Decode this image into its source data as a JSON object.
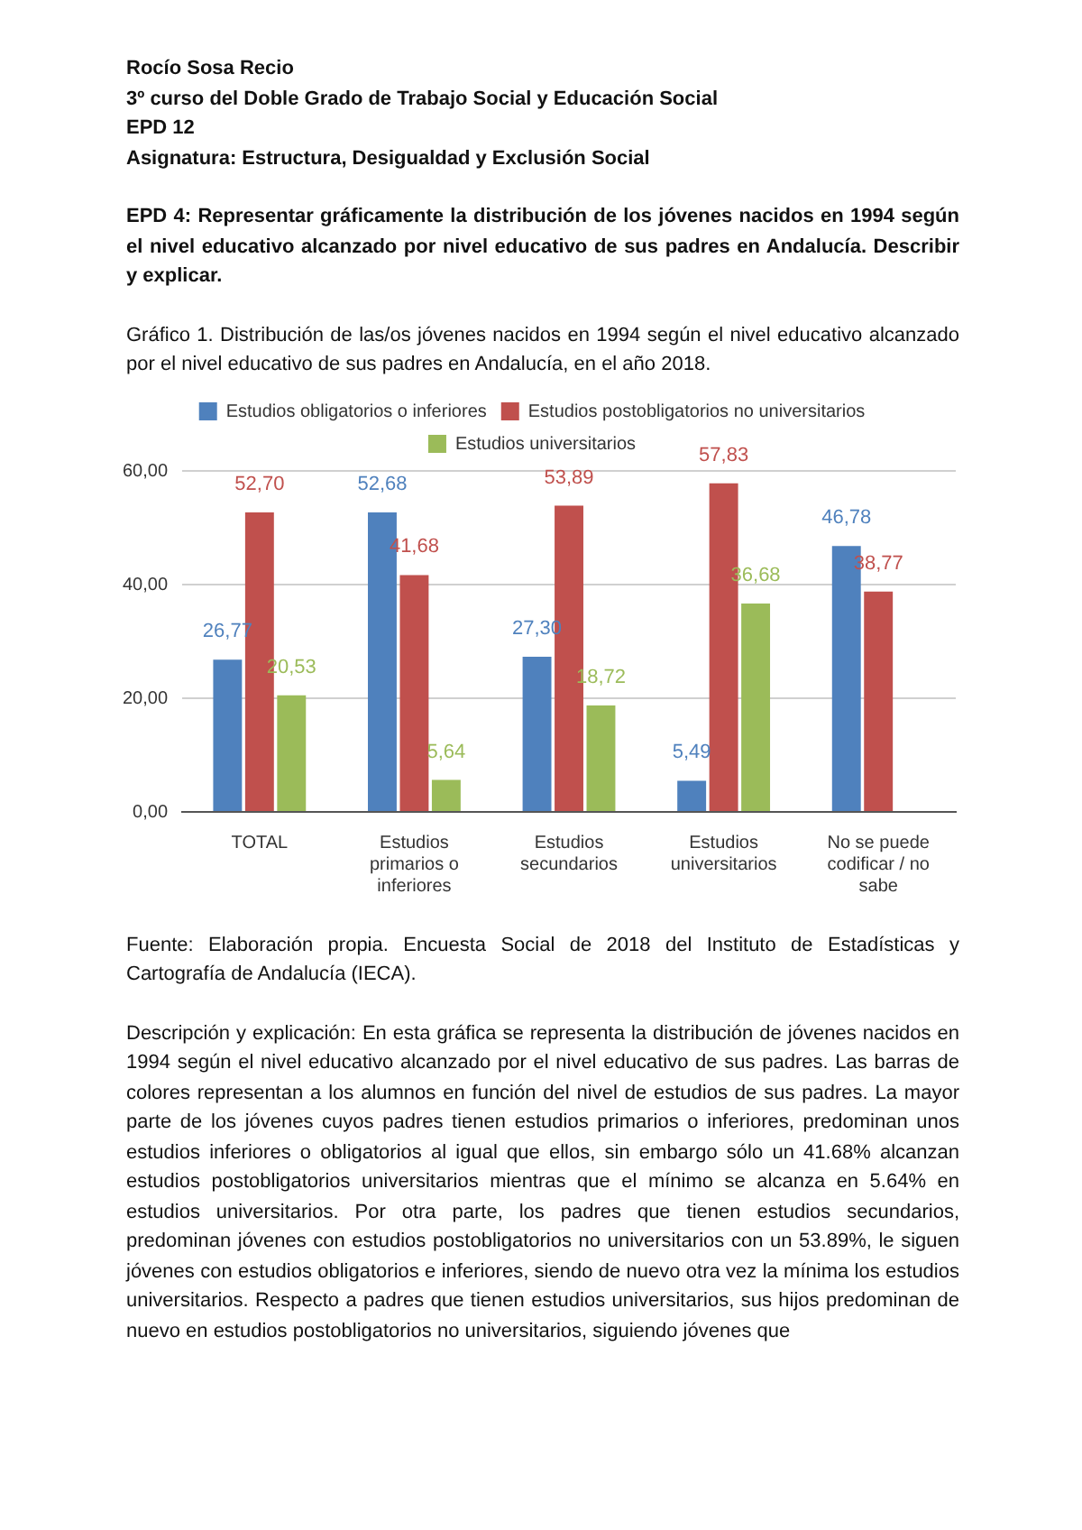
{
  "chart_data": {
    "type": "bar",
    "title": "Gráfico 1. Distribución de las/os jóvenes nacidos en 1994 según el nivel educativo alcanzado por el nivel educativo de sus padres en Andalucía, en el año 2018.",
    "categories": [
      "TOTAL",
      "Estudios primarios o inferiores",
      "Estudios secundarios",
      "Estudios universitarios",
      "No se puede codificar / no sabe"
    ],
    "series": [
      {
        "name": "Estudios obligatorios o inferiores",
        "color": "#4f81bd",
        "values": [
          26.77,
          52.68,
          27.3,
          5.49,
          46.78
        ],
        "value_labels": [
          "26,77",
          "52,68",
          "27,30",
          "5,49",
          "46,78"
        ]
      },
      {
        "name": "Estudios postobligatorios no universitarios",
        "color": "#c0504d",
        "values": [
          52.7,
          41.68,
          53.89,
          57.83,
          38.77
        ],
        "value_labels": [
          "52,70",
          "41,68",
          "53,89",
          "57,83",
          "38,77"
        ]
      },
      {
        "name": "Estudios universitarios",
        "color": "#9bbb59",
        "values": [
          20.53,
          5.64,
          18.72,
          36.68,
          null
        ],
        "value_labels": [
          "20,53",
          "5,64",
          "18,72",
          "36,68",
          null
        ]
      }
    ],
    "ylim": [
      0,
      60
    ],
    "yticks": [
      {
        "value": 0,
        "label": "0,00"
      },
      {
        "value": 20,
        "label": "20,00"
      },
      {
        "value": 40,
        "label": "40,00"
      },
      {
        "value": 60,
        "label": "60,00"
      }
    ],
    "grid": "y",
    "legend": "top",
    "annotations": [
      "Rocío Sosa Recio",
      "3º curso del Doble Grado de Trabajo Social y Educación Social",
      "EPD 12",
      "Asignatura: Estructura, Desigualdad y Exclusión Social",
      "EPD 4: Representar gráficamente la distribución de los jóvenes nacidos en 1994 según el nivel educativo alcanzado por nivel educativo de sus padres en Andalucía. Describir y explicar.",
      "Fuente: Elaboración propia. Encuesta Social de 2018 del Instituto de Estadísticas y Cartografía de Andalucía (IECA).",
      "Descripción y explicación: En esta gráfica se representa la distribución de jóvenes nacidos en 1994 según el nivel educativo alcanzado por el nivel educativo de sus padres. Las barras de colores representan a los alumnos en función del nivel de estudios de sus padres. La mayor parte de los jóvenes cuyos padres tienen estudios primarios o inferiores, predominan unos estudios inferiores o obligatorios al igual que ellos, sin embargo sólo un 41.68% alcanzan estudios postobligatorios universitarios mientras que el mínimo se alcanza en 5.64% en estudios universitarios. Por otra parte, los padres que tienen estudios secundarios, predominan jóvenes con estudios postobligatorios no universitarios con un 53.89%, le siguen jóvenes con estudios obligatorios e inferiores, siendo de nuevo otra vez la mínima los estudios universitarios. Respecto a padres que tienen estudios universitarios, sus hijos predominan de nuevo en estudios postobligatorios no universitarios, siguiendo jóvenes que"
    ]
  }
}
